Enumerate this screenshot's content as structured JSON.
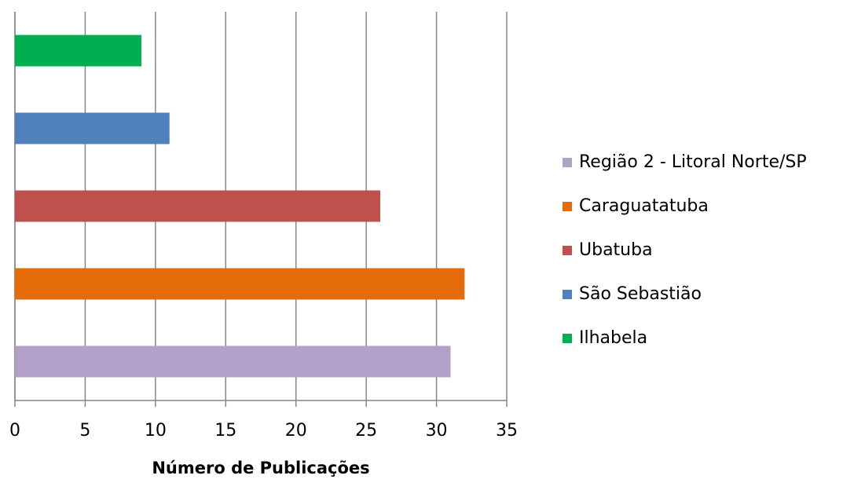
{
  "chart_data": {
    "type": "bar",
    "orientation": "horizontal",
    "x_label": "Número de Publicações",
    "series": [
      {
        "name": "Região 2 - Litoral Norte/SP",
        "color": "#b1a0c7",
        "values": [
          31
        ]
      },
      {
        "name": "Caraguatatuba",
        "color": "#e46c0a",
        "values": [
          32
        ]
      },
      {
        "name": "Ubatuba",
        "color": "#c0504d",
        "values": [
          26
        ]
      },
      {
        "name": "São Sebastião",
        "color": "#4f81bd",
        "values": [
          11
        ]
      },
      {
        "name": "Ilhabela",
        "color": "#00b050",
        "values": [
          9
        ]
      }
    ],
    "xlim": [
      0,
      35
    ],
    "xticks": [
      0,
      5,
      10,
      15,
      20,
      25,
      30,
      35
    ],
    "grid": true,
    "legend": "right"
  }
}
